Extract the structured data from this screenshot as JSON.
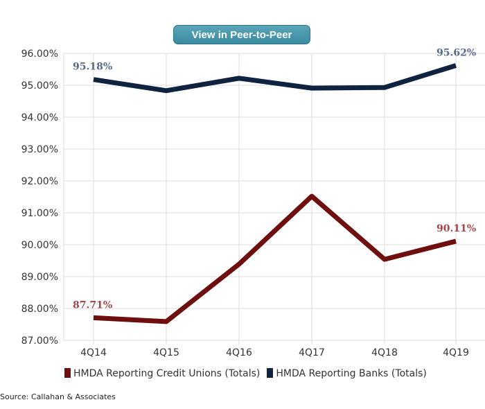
{
  "button": {
    "label": "View in Peer-to-Peer"
  },
  "chart_data": {
    "type": "line",
    "categories": [
      "4Q14",
      "4Q15",
      "4Q16",
      "4Q17",
      "4Q18",
      "4Q19"
    ],
    "ylim": [
      87,
      96
    ],
    "yticks": [
      "87.00%",
      "88.00%",
      "89.00%",
      "90.00%",
      "91.00%",
      "92.00%",
      "93.00%",
      "94.00%",
      "95.00%",
      "96.00%"
    ],
    "grid": true,
    "legend_position": "bottom",
    "series": [
      {
        "name": "HMDA Reporting Credit Unions (Totals)",
        "color": "#6e0e0e",
        "label_color": "#a0474a",
        "values": [
          87.71,
          87.59,
          89.39,
          91.52,
          89.54,
          90.11
        ],
        "data_labels": {
          "0": "87.71%",
          "5": "90.11%"
        }
      },
      {
        "name": "HMDA Reporting Banks (Totals)",
        "color": "#0f2340",
        "label_color": "#566a88",
        "values": [
          95.18,
          94.83,
          95.22,
          94.91,
          94.93,
          95.62
        ],
        "data_labels": {
          "0": "95.18%",
          "5": "95.62%"
        }
      }
    ]
  },
  "source": "Source: Callahan & Associates"
}
